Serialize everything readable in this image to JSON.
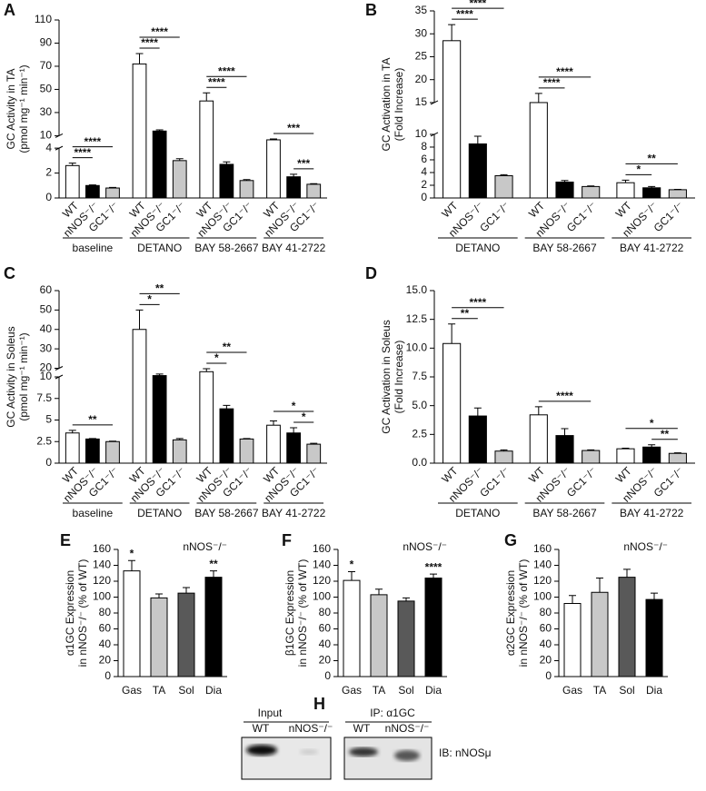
{
  "chart_data": [
    {
      "type": "bar",
      "panel": "A",
      "ylabel": [
        "GC Activity in TA",
        "(pmol mg⁻¹ min⁻¹)"
      ],
      "categories": [
        "baseline",
        "DETANO",
        "BAY 58-2667",
        "BAY 41-2722"
      ],
      "series": [
        {
          "name": "WT",
          "color": "#ffffff",
          "values": [
            2.6,
            72,
            40,
            8
          ],
          "errors": [
            0.2,
            9,
            7,
            0.4
          ]
        },
        {
          "name": "nNOS⁻/⁻",
          "color": "#000000",
          "values": [
            1.0,
            14,
            2.7,
            1.7
          ],
          "errors": [
            0.05,
            1,
            0.2,
            0.2
          ]
        },
        {
          "name": "GC1⁻/⁻",
          "color": "#c8c8c8",
          "values": [
            0.8,
            3.0,
            1.4,
            1.1
          ],
          "errors": [
            0.05,
            0.15,
            0.08,
            0.05
          ]
        }
      ],
      "ylim": [
        0,
        110
      ],
      "ybreak": [
        4,
        10
      ],
      "yticks": [
        0,
        2,
        4,
        10,
        30,
        50,
        70,
        90,
        110
      ],
      "annotations": [
        {
          "text": "****",
          "group": 0,
          "between": [
            0,
            1
          ]
        },
        {
          "text": "****",
          "group": 0,
          "between": [
            0,
            2
          ]
        },
        {
          "text": "****",
          "group": 1,
          "between": [
            0,
            1
          ]
        },
        {
          "text": "****",
          "group": 1,
          "between": [
            0,
            2
          ]
        },
        {
          "text": "****",
          "group": 2,
          "between": [
            0,
            1
          ]
        },
        {
          "text": "****",
          "group": 2,
          "between": [
            0,
            2
          ]
        },
        {
          "text": "***",
          "group": 3,
          "between": [
            1,
            2
          ]
        },
        {
          "text": "***",
          "group": 3,
          "between": [
            0,
            2
          ]
        }
      ]
    },
    {
      "type": "bar",
      "panel": "B",
      "ylabel": [
        "GC Activation in TA",
        "(Fold Increase)"
      ],
      "categories": [
        "DETANO",
        "BAY 58-2667",
        "BAY 41-2722"
      ],
      "series": [
        {
          "name": "WT",
          "color": "#ffffff",
          "values": [
            28.5,
            15,
            2.4
          ],
          "errors": [
            3.5,
            2,
            0.4
          ]
        },
        {
          "name": "nNOS⁻/⁻",
          "color": "#000000",
          "values": [
            8.5,
            2.5,
            1.6
          ],
          "errors": [
            1.2,
            0.25,
            0.2
          ]
        },
        {
          "name": "GC1⁻/⁻",
          "color": "#c8c8c8",
          "values": [
            3.5,
            1.8,
            1.3
          ],
          "errors": [
            0.15,
            0.1,
            0.05
          ]
        }
      ],
      "ylim": [
        0,
        35
      ],
      "ybreak": [
        10,
        15
      ],
      "yticks": [
        0,
        2,
        4,
        6,
        8,
        10,
        15,
        20,
        25,
        30,
        35
      ],
      "annotations": [
        {
          "text": "****",
          "group": 0,
          "between": [
            0,
            1
          ]
        },
        {
          "text": "****",
          "group": 0,
          "between": [
            0,
            2
          ]
        },
        {
          "text": "****",
          "group": 1,
          "between": [
            0,
            1
          ]
        },
        {
          "text": "****",
          "group": 1,
          "between": [
            0,
            2
          ]
        },
        {
          "text": "*",
          "group": 2,
          "between": [
            0,
            1
          ]
        },
        {
          "text": "**",
          "group": 2,
          "between": [
            0,
            2
          ]
        }
      ]
    },
    {
      "type": "bar",
      "panel": "C",
      "ylabel": [
        "GC Activity in Soleus",
        "(pmol mg⁻¹ min⁻¹)"
      ],
      "categories": [
        "baseline",
        "DETANO",
        "BAY 58-2667",
        "BAY 41-2722"
      ],
      "series": [
        {
          "name": "WT",
          "color": "#ffffff",
          "values": [
            3.5,
            40,
            16,
            4.4
          ],
          "errors": [
            0.3,
            10,
            3.5,
            0.5
          ]
        },
        {
          "name": "nNOS⁻/⁻",
          "color": "#000000",
          "values": [
            2.8,
            11.5,
            6.3,
            3.5
          ],
          "errors": [
            0.05,
            1.8,
            0.4,
            0.6
          ]
        },
        {
          "name": "GC1⁻/⁻",
          "color": "#c8c8c8",
          "values": [
            2.5,
            2.7,
            2.8,
            2.2
          ],
          "errors": [
            0.05,
            0.15,
            0.05,
            0.1
          ]
        }
      ],
      "ylim": [
        0,
        60
      ],
      "ybreak": [
        10,
        20
      ],
      "yticks": [
        0,
        2.5,
        5,
        7.5,
        10,
        20,
        30,
        40,
        50,
        60
      ],
      "annotations": [
        {
          "text": "**",
          "group": 0,
          "between": [
            0,
            2
          ]
        },
        {
          "text": "*",
          "group": 1,
          "between": [
            0,
            1
          ]
        },
        {
          "text": "**",
          "group": 1,
          "between": [
            0,
            2
          ]
        },
        {
          "text": "*",
          "group": 2,
          "between": [
            0,
            1
          ]
        },
        {
          "text": "**",
          "group": 2,
          "between": [
            0,
            2
          ]
        },
        {
          "text": "*",
          "group": 3,
          "between": [
            1,
            2
          ]
        },
        {
          "text": "*",
          "group": 3,
          "between": [
            0,
            2
          ]
        }
      ]
    },
    {
      "type": "bar",
      "panel": "D",
      "ylabel": [
        "GC Activation in Soleus",
        "(Fold Increase)"
      ],
      "categories": [
        "DETANO",
        "BAY 58-2667",
        "BAY 41-2722"
      ],
      "series": [
        {
          "name": "WT",
          "color": "#ffffff",
          "values": [
            10.4,
            4.2,
            1.25
          ],
          "errors": [
            1.7,
            0.7,
            0.05
          ]
        },
        {
          "name": "nNOS⁻/⁻",
          "color": "#000000",
          "values": [
            4.1,
            2.4,
            1.4
          ],
          "errors": [
            0.7,
            0.6,
            0.2
          ]
        },
        {
          "name": "GC1⁻/⁻",
          "color": "#c8c8c8",
          "values": [
            1.05,
            1.1,
            0.85
          ],
          "errors": [
            0.1,
            0.05,
            0.05
          ]
        }
      ],
      "ylim": [
        0,
        15
      ],
      "yticks": [
        {
          "value": 0,
          "label": "0.0"
        },
        2.5,
        {
          "value": 5,
          "label": "5.0"
        },
        7.5,
        {
          "value": 10,
          "label": "10.0"
        },
        12.5,
        {
          "value": 15,
          "label": "15.0"
        }
      ],
      "annotations": [
        {
          "text": "**",
          "group": 0,
          "between": [
            0,
            1
          ]
        },
        {
          "text": "****",
          "group": 0,
          "between": [
            0,
            2
          ]
        },
        {
          "text": "****",
          "group": 1,
          "between": [
            0,
            2
          ]
        },
        {
          "text": "**",
          "group": 2,
          "between": [
            1,
            2
          ]
        },
        {
          "text": "*",
          "group": 2,
          "between": [
            0,
            2
          ]
        }
      ]
    },
    {
      "type": "bar",
      "panel": "E",
      "ylabel": [
        "α1GC Expression",
        "in nNOS⁻/⁻ (% of WT)"
      ],
      "note": "nNOS⁻/⁻",
      "categories": [
        "Gas",
        "TA",
        "Sol",
        "Dia"
      ],
      "values": [
        133,
        99,
        105,
        125
      ],
      "errors": [
        13,
        5,
        7,
        8
      ],
      "stars": [
        "*",
        null,
        null,
        "**"
      ],
      "colors": [
        "#ffffff",
        "#c8c8c8",
        "#595959",
        "#000000"
      ],
      "ylim": [
        0,
        160
      ],
      "yticks": [
        0,
        20,
        40,
        60,
        80,
        100,
        120,
        140,
        160
      ]
    },
    {
      "type": "bar",
      "panel": "F",
      "ylabel": [
        "β1GC Expression",
        "in nNOS⁻/⁻ (% of WT)"
      ],
      "note": "nNOS⁻/⁻",
      "categories": [
        "Gas",
        "TA",
        "Sol",
        "Dia"
      ],
      "values": [
        121,
        103,
        95,
        124
      ],
      "errors": [
        11,
        7,
        4,
        5
      ],
      "stars": [
        "*",
        null,
        null,
        "****"
      ],
      "colors": [
        "#ffffff",
        "#c8c8c8",
        "#595959",
        "#000000"
      ],
      "ylim": [
        0,
        160
      ],
      "yticks": [
        0,
        20,
        40,
        60,
        80,
        100,
        120,
        140,
        160
      ]
    },
    {
      "type": "bar",
      "panel": "G",
      "ylabel": [
        "α2GC Expression",
        "in nNOS⁻/⁻ (% of WT)"
      ],
      "note": "nNOS⁻/⁻",
      "categories": [
        "Gas",
        "TA",
        "Sol",
        "Dia"
      ],
      "values": [
        92,
        106,
        125,
        97
      ],
      "errors": [
        10,
        18,
        10,
        8
      ],
      "colors": [
        "#ffffff",
        "#c8c8c8",
        "#595959",
        "#000000"
      ],
      "ylim": [
        0,
        160
      ],
      "yticks": [
        0,
        20,
        40,
        60,
        80,
        100,
        120,
        140,
        160
      ]
    }
  ],
  "blot": {
    "panel": "H",
    "groups": [
      {
        "title": "Input",
        "lanes": [
          "WT",
          "nNOS⁻/⁻"
        ]
      },
      {
        "title": "IP: α1GC",
        "lanes": [
          "WT",
          "nNOS⁻/⁻"
        ]
      }
    ],
    "antibody": "IB: nNOSμ"
  }
}
